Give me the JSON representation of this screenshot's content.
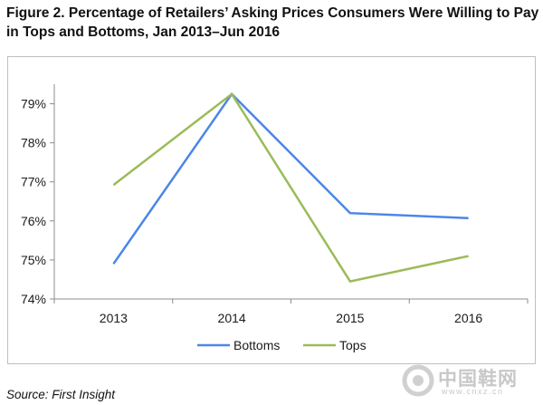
{
  "title": "Figure 2. Percentage of Retailers’ Asking Prices Consumers Were Willing to Pay in Tops and Bottoms, Jan 2013–Jun 2016",
  "source": "Source: First Insight",
  "watermark": {
    "text": "中国鞋网",
    "url": "www.cnxz.cn"
  },
  "chart_data": {
    "type": "line",
    "title": "",
    "xlabel": "",
    "ylabel": "",
    "categories": [
      "2013",
      "2014",
      "2015",
      "2016"
    ],
    "yticks": [
      74,
      75,
      76,
      77,
      78,
      79
    ],
    "ytick_labels": [
      "74%",
      "75%",
      "76%",
      "77%",
      "78%",
      "79%"
    ],
    "ylim": [
      74,
      79.5
    ],
    "grid": false,
    "legend_position": "bottom",
    "series": [
      {
        "name": "Bottoms",
        "color": "#4a86e8",
        "values": [
          74.9,
          79.25,
          76.2,
          76.07
        ]
      },
      {
        "name": "Tops",
        "color": "#9bbb59",
        "values": [
          76.92,
          79.25,
          74.45,
          75.1
        ]
      }
    ]
  }
}
